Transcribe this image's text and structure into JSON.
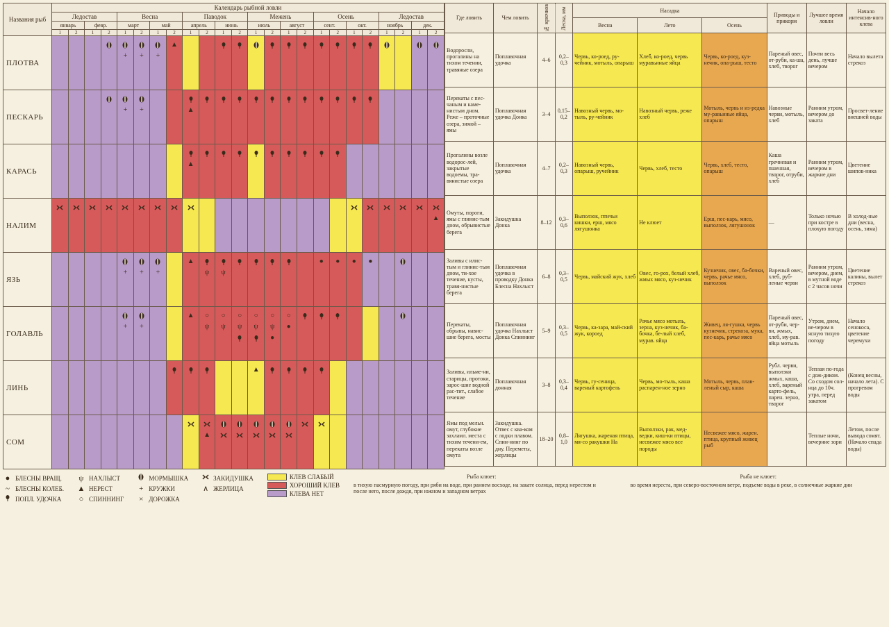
{
  "title": "Календарь рыбной ловли",
  "colors": {
    "purple": "#b89bc8",
    "red": "#d65a5a",
    "yellow": "#f5e850",
    "orange": "#e8a850",
    "border": "#6a5a4a",
    "bg": "#f5f0e0"
  },
  "headers": {
    "fish_name": "Названия рыб",
    "calendar": "Календарь рыбной ловли",
    "seasons": [
      "Ледостав",
      "Весна",
      "Паводок",
      "Межень",
      "Осень",
      "Ледостав"
    ],
    "months": [
      "январь",
      "февр.",
      "март",
      "май",
      "апрель",
      "июнь",
      "июль",
      "август",
      "сент.",
      "окт.",
      "ноябрь",
      "дек."
    ],
    "halves": [
      "1",
      "2"
    ],
    "where": "Где ловить",
    "how": "Чем ловить",
    "hooks": "№ крючков",
    "line": "Леска, мм",
    "bait": "Насадка",
    "bait_seasons": [
      "Весна",
      "Лето",
      "Осень"
    ],
    "lure": "Приводы и прикорм",
    "best_time": "Лучшее время ловли",
    "bite_start": "Начало интенсив-ного клева"
  },
  "symbols": {
    "spinner": {
      "glyph": "●",
      "label": "БЛЕСНЫ ВРАЩ."
    },
    "wobbler": {
      "glyph": "~",
      "label": "БЛЕСНЫ КОЛЕБ."
    },
    "float": {
      "glyph": "float",
      "label": "ПОПЛ. УДОЧКА"
    },
    "fly": {
      "glyph": "ψ",
      "label": "НАХЛЫСТ"
    },
    "spawn": {
      "glyph": "▲",
      "label": "НЕРЕСТ"
    },
    "spin": {
      "glyph": "○",
      "label": "СПИННИНГ"
    },
    "jig": {
      "glyph": "jig",
      "label": "МОРМЫШКА"
    },
    "circle": {
      "glyph": "+",
      "label": "КРУЖКИ"
    },
    "track": {
      "glyph": "×",
      "label": "ДОРОЖКА"
    },
    "donka": {
      "glyph": "donka",
      "label": "ЗАКИДУШКА"
    },
    "zher": {
      "glyph": "∧",
      "label": "ЖЕРЛИЦА"
    }
  },
  "color_legend": [
    {
      "color": "#f5e850",
      "label": "КЛЕВ СЛАБЫЙ"
    },
    {
      "color": "#d65a5a",
      "label": "ХОРОШИЙ КЛЕВ"
    },
    {
      "color": "#b89bc8",
      "label": "КЛЕВА НЕТ"
    }
  ],
  "notes": {
    "good": {
      "title": "Рыба клюет:",
      "text": "в тихую пасмурную погоду, при ряби на воде, при раннем восходе, на закате солнца, перед нерестом и после него, после дождя, при южном и западном ветрах"
    },
    "bad": {
      "title": "Рыба не клюет:",
      "text": "во время нереста, при северо-восточном ветре, подъеме воды в реке, в солнечные жаркие дни"
    }
  },
  "fish": [
    {
      "name": "ПЛОТВА",
      "calendar": [
        "p",
        "p",
        "p",
        "pJ",
        "pJC",
        "pJC",
        "pJC",
        "rS",
        "y",
        "r",
        "rF",
        "rF",
        "yJ",
        "rF",
        "rF",
        "rF",
        "rF",
        "rF",
        "rF",
        "rF",
        "yJ",
        "y",
        "pJ",
        "pJ"
      ],
      "where": "Водоросли, прогалины на тихом течении, травяные озера",
      "how": "Поплавочная удочка",
      "hooks": "4–6",
      "line": "0,2–0,3",
      "bait": [
        "Червь, ко-роед, ру-чейник, мотыль, опарыш",
        "Хлеб, ко-роед, червь муравьиные яйца",
        "Червь, ко-роед, куз-нечик, опа-рыш, тесто"
      ],
      "lure": "Пареный овес, от-руби, ка-ша, хлеб, творог",
      "best_time": "Почти весь день, лучше вечером",
      "bite_start": "Начало вылета стрекоз"
    },
    {
      "name": "ПЕСКАРЬ",
      "calendar": [
        "p",
        "p",
        "p",
        "pJ",
        "pJC",
        "pJC",
        "p",
        "r",
        "rFS",
        "rF",
        "rF",
        "rF",
        "rF",
        "rF",
        "rF",
        "rF",
        "rF",
        "rF",
        "rF",
        "rF",
        "p",
        "p",
        "p",
        "p"
      ],
      "where": "Перекаты с пес-чаным и каме-нистым дном. Реже – проточные озера, зимой – ямы",
      "how": "Поплавочная удочка Донка",
      "hooks": "3–4",
      "line": "0,15–0,2",
      "bait": [
        "Навозный червь, мо-тыль, ру-чейник",
        "Навозный червь, реже хлеб",
        "Мотыль, червь и из-редка му-равьиные яйца, опарыш"
      ],
      "lure": "Навозные черви, мотыль, хлеб",
      "best_time": "Ранним утром, вечером до заката",
      "bite_start": "Просвет-ление внешней воды"
    },
    {
      "name": "КАРАСЬ",
      "calendar": [
        "p",
        "p",
        "p",
        "p",
        "p",
        "p",
        "p",
        "y",
        "rFS",
        "rF",
        "rF",
        "rF",
        "yF",
        "rF",
        "rF",
        "rF",
        "rF",
        "rF",
        "p",
        "p",
        "p",
        "p",
        "p",
        "p"
      ],
      "where": "Прогалины возле водорос-лей, закрытые водоемы, тра-вянистые озера",
      "how": "Поплавочная удочка",
      "hooks": "4–7",
      "line": "0,2–0,3",
      "bait": [
        "Навозный червь, опарыш, ручейник",
        "Червь, хлеб, тесто",
        "Червь, хлеб, тесто, опарыш"
      ],
      "lure": "Каша гречневая и пшенная, творог, отруби, хлеб",
      "best_time": "Ранним утром, вечером в жаркие дни",
      "bite_start": "Цветение шипов-ника"
    },
    {
      "name": "НАЛИМ",
      "calendar": [
        "rD",
        "rD",
        "rD",
        "rD",
        "rD",
        "rD",
        "rD",
        "rD",
        "yD",
        "y",
        "p",
        "p",
        "p",
        "p",
        "p",
        "p",
        "p",
        "y",
        "yD",
        "rD",
        "rD",
        "rD",
        "rD",
        "rDS"
      ],
      "where": "Омуты, пороги, ямы с глинис-тым дном, обрывистые берега",
      "how": "Закидушка Донка",
      "hooks": "8–12",
      "line": "0,3–0,6",
      "bait": [
        "Выползок, птичьи кишки, ерш, мясо лягушонка",
        "Не клюет",
        "Ерш, пес-карь, мясо, выползок, лягушонок"
      ],
      "lure": "—",
      "best_time": "Только ночью при костре в плохую погоду",
      "bite_start": "В холод-ные дни (весна, осень, зима)"
    },
    {
      "name": "ЯЗЬ",
      "calendar": [
        "p",
        "p",
        "p",
        "p",
        "pJC",
        "pJC",
        "pJC",
        "y",
        "rS",
        "rFY",
        "rFY",
        "rF",
        "rF",
        "rF",
        "rF",
        "r",
        "r●",
        "r●",
        "r●",
        "p●",
        "p",
        "pJ",
        "p",
        "p"
      ],
      "where": "Заливы с илис-тым и глинис-тым дном, ти-хое течение, кусты, травя-нистые берега",
      "how": "Поплавочная удочка в проводку Донка Блесна Нахлыст",
      "hooks": "6–8",
      "line": "0,3–0,5",
      "bait": [
        "Червь, майский жук, хлеб",
        "Овес, го-рох, белый хлеб, жмых мясо, куз-нечик",
        "Кузнечик, овес, ба-бочки, червь, рачье мясо, выползок"
      ],
      "lure": "Вареный овес, хлеб, руб-леные черви",
      "best_time": "Ранним утром, вечером, днем, в мутной воде с 2 часов ночи",
      "bite_start": "Цветение калины, вылет стрекоз"
    },
    {
      "name": "ГОЛАВЛЬ",
      "calendar": [
        "p",
        "p",
        "p",
        "p",
        "pJC",
        "pJC",
        "p",
        "y",
        "rS",
        "rOY",
        "rOY",
        "rOYF",
        "rOYF",
        "rOY●",
        "rO●",
        "rF",
        "rF",
        "rF",
        "r",
        "y",
        "p",
        "pJ",
        "p",
        "p"
      ],
      "where": "Перекаты, обрывы, навис-шие берега, мосты",
      "how": "Поплавочная удочка Нахлыст Донка Спиннинг",
      "hooks": "5–9",
      "line": "0,3–0,5",
      "bait": [
        "Червь, ка-зара, май-ский жук, короед",
        "Рачье мясо мотыль, зерна, куз-нечик, ба-бочка, бе-лый хлеб, мурав. яйца",
        "Живец, ля-гушка, червь кузнечик, стрекоза, мука, пес-карь, рачье мясо"
      ],
      "lure": "Пареный овес, от-руби, чер-ви, жмых, хлеб, му-рав. яйца мотыль",
      "best_time": "Утром, днем, ве-чером в ясную тихую погоду",
      "bite_start": "Начало сенокоса, цветение черемухи"
    },
    {
      "name": "ЛИНЬ",
      "calendar": [
        "p",
        "p",
        "p",
        "p",
        "p",
        "p",
        "p",
        "rF",
        "rF",
        "rF",
        "y",
        "y",
        "yS",
        "rF",
        "rF",
        "rF",
        "rF",
        "y",
        "p",
        "p",
        "p",
        "p",
        "p",
        "p"
      ],
      "where": "Заливы, ильме-ни, старицы, протоки, зарос-шие водной рас-тит., слабое течение",
      "how": "Поплавочная донная",
      "hooks": "3–8",
      "line": "0,3–0,4",
      "bait": [
        "Червь, гу-сеница, вареный картофель",
        "Червь, мо-тыль, каша распарен-ное зерно",
        "Мотыль, червь, плав-леный сыр, каша"
      ],
      "lure": "Рубл. черви, выползки жмых, каша, хлеб, вареный карто-фель, парен. зерно, творог",
      "best_time": "Теплая по-года с дож-диком. Со сходом сол-нца до 10ч. утра, перед закатом",
      "bite_start": "(Конец весны, начало лета). С прогревом воды"
    },
    {
      "name": "СОМ",
      "calendar": [
        "p",
        "p",
        "p",
        "p",
        "p",
        "p",
        "p",
        "p",
        "yD",
        "rDS",
        "rJD",
        "rJD",
        "rJD",
        "rJD",
        "rJD",
        "rD",
        "yD",
        "y",
        "p",
        "p",
        "p",
        "p",
        "p",
        "p"
      ],
      "where": "Ямы под мельн. омут, глубокие захламл. места с тихим течени-ем, перекаты возле омута",
      "how": "Закидушка. Отвес с ква-ком с лодки плавом. Спин-нинг по дну. Переметы, жерлицы",
      "hooks": "18–20",
      "line": "0,8–1,0",
      "bait": [
        "Лягушка, жареная птица, мя-со ракушки\nНа",
        "Выползки, рак, мед-ведки, киш-ки птицы, несвежее мясо\nвсе породы",
        "Несвежее мясо, жарен. птица, крупный живец\nрыб"
      ],
      "lure": "",
      "best_time": "Теплые ночи, вечерние зори",
      "bite_start": "Летом, после вывода сомят. (Начало спада воды)"
    }
  ]
}
